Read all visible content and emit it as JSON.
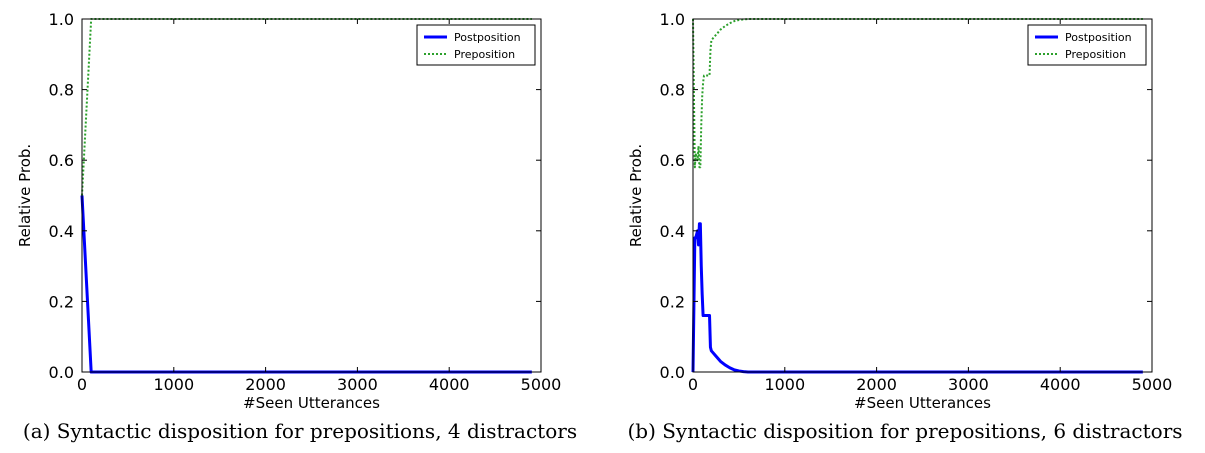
{
  "chart_data": [
    {
      "type": "line",
      "caption": "(a)  Syntactic disposition for prepositions, 4 distractors",
      "xlabel": "#Seen Utterances",
      "ylabel": "Relative Prob.",
      "xlim": [
        0,
        5000
      ],
      "ylim": [
        0,
        1.0
      ],
      "xticks": [
        0,
        1000,
        2000,
        3000,
        4000,
        5000
      ],
      "yticks": [
        0.0,
        0.2,
        0.4,
        0.6,
        0.8,
        1.0
      ],
      "legend_position": "top-right",
      "series": [
        {
          "name": "Postposition",
          "color": "#0000ff",
          "style": "solid",
          "x": [
            0,
            30,
            60,
            90,
            100,
            500,
            1000,
            2000,
            3000,
            4000,
            4900
          ],
          "y": [
            0.5,
            0.35,
            0.2,
            0.05,
            0.0,
            0.0,
            0.0,
            0.0,
            0.0,
            0.0,
            0.0
          ]
        },
        {
          "name": "Preposition",
          "color": "#2ca02c",
          "style": "dotted",
          "x": [
            0,
            30,
            60,
            90,
            100,
            500,
            1000,
            2000,
            3000,
            4000,
            4900
          ],
          "y": [
            0.5,
            0.65,
            0.8,
            0.95,
            1.0,
            1.0,
            1.0,
            1.0,
            1.0,
            1.0,
            1.0
          ]
        }
      ]
    },
    {
      "type": "line",
      "caption": "(b)  Syntactic disposition for prepositions, 6 distractors",
      "xlabel": "#Seen Utterances",
      "ylabel": "Relative Prob.",
      "xlim": [
        0,
        5000
      ],
      "ylim": [
        0,
        1.0
      ],
      "xticks": [
        0,
        1000,
        2000,
        3000,
        4000,
        5000
      ],
      "yticks": [
        0.0,
        0.2,
        0.4,
        0.6,
        0.8,
        1.0
      ],
      "legend_position": "top-right",
      "series": [
        {
          "name": "Postposition",
          "color": "#0000ff",
          "style": "solid",
          "x": [
            0,
            20,
            30,
            50,
            60,
            70,
            80,
            90,
            100,
            110,
            120,
            150,
            180,
            190,
            200,
            250,
            300,
            350,
            400,
            450,
            500,
            550,
            600,
            800,
            1000,
            2000,
            3000,
            4000,
            4900
          ],
          "y": [
            0.0,
            0.38,
            0.38,
            0.4,
            0.36,
            0.42,
            0.42,
            0.3,
            0.22,
            0.16,
            0.16,
            0.16,
            0.16,
            0.07,
            0.06,
            0.045,
            0.03,
            0.02,
            0.012,
            0.006,
            0.003,
            0.001,
            0.0,
            0.0,
            0.0,
            0.0,
            0.0,
            0.0,
            0.0
          ]
        },
        {
          "name": "Preposition",
          "color": "#2ca02c",
          "style": "dotted",
          "x": [
            0,
            20,
            30,
            50,
            60,
            70,
            80,
            90,
            100,
            110,
            120,
            150,
            180,
            190,
            200,
            250,
            300,
            350,
            400,
            450,
            500,
            550,
            600,
            800,
            1000,
            2000,
            3000,
            4000,
            4900
          ],
          "y": [
            1.0,
            0.58,
            0.62,
            0.6,
            0.64,
            0.58,
            0.58,
            0.7,
            0.78,
            0.82,
            0.84,
            0.84,
            0.84,
            0.91,
            0.94,
            0.955,
            0.97,
            0.98,
            0.988,
            0.994,
            0.997,
            0.999,
            1.0,
            1.0,
            1.0,
            1.0,
            1.0,
            1.0,
            1.0
          ]
        }
      ]
    }
  ]
}
